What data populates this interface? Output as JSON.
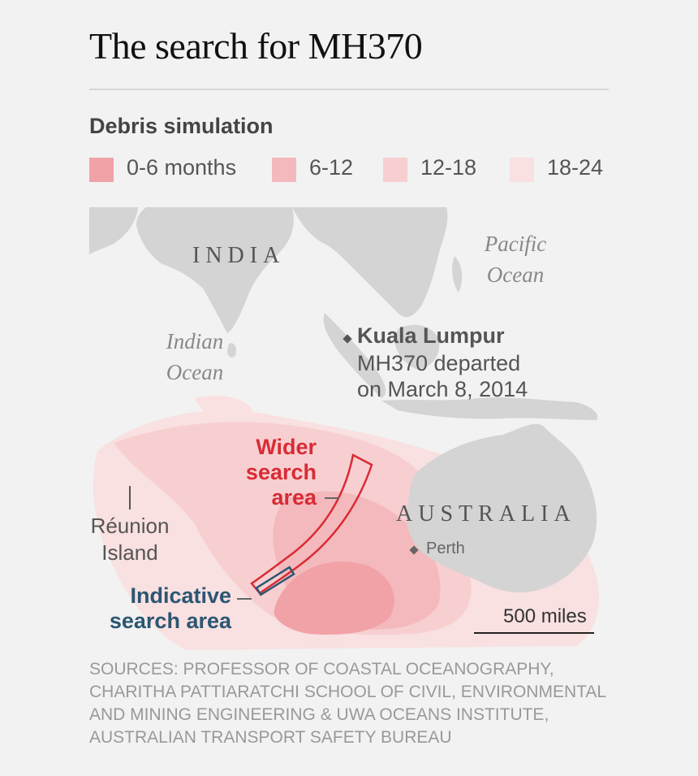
{
  "title": "The search for MH370",
  "legend": {
    "heading": "Debris simulation",
    "items": [
      {
        "label": "0-6 months",
        "color": "#f1a2a6"
      },
      {
        "label": "6-12",
        "color": "#f4b9bc"
      },
      {
        "label": "12-18",
        "color": "#f7cfd1"
      },
      {
        "label": "18-24",
        "color": "#f9e0e1"
      }
    ]
  },
  "map": {
    "labels": {
      "india": "INDIA",
      "australia": "AUSTRALIA",
      "pacific_ocean": [
        "Pacific",
        "Ocean"
      ],
      "indian_ocean": [
        "Indian",
        "Ocean"
      ],
      "kuala_lumpur": "Kuala Lumpur",
      "kl_note": [
        "MH370 departed",
        "on March 8, 2014"
      ],
      "wider_search": [
        "Wider",
        "search",
        "area"
      ],
      "indicative_search": [
        "Indicative",
        "search area"
      ],
      "reunion": [
        "Réunion",
        "Island"
      ],
      "perth": "Perth",
      "scale": "500 miles"
    },
    "colors": {
      "land": "#d4d4d4",
      "wider_area": "#d92b35",
      "indicative_area": "#2b5672"
    }
  },
  "sources": [
    "SOURCES: PROFESSOR OF COASTAL OCEANOGRAPHY,",
    "CHARITHA PATTIARATCHI SCHOOL OF CIVIL, ENVIRONMENTAL",
    "AND MINING ENGINEERING & UWA OCEANS INSTITUTE,",
    "AUSTRALIAN TRANSPORT SAFETY BUREAU"
  ]
}
